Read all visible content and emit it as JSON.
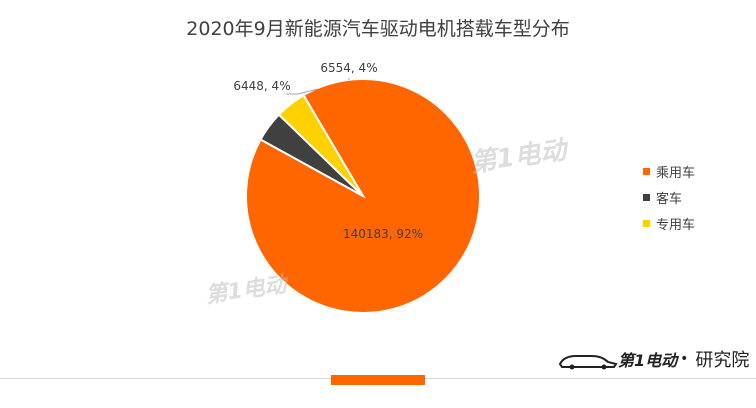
{
  "chart_data": {
    "type": "pie",
    "title": "2020年9月新能源汽车驱动电机搭载车型分布",
    "categories": [
      "乘用车",
      "客车",
      "专用车"
    ],
    "values": [
      140183,
      6448,
      6554
    ],
    "percent_labels": [
      "92%",
      "4%",
      "4%"
    ],
    "data_labels": [
      "140183, 92%",
      "6448, 4%",
      "6554, 4%"
    ],
    "legend_position": "right",
    "colors": [
      "#ff6600",
      "#404040",
      "#ffd100"
    ]
  },
  "brand": {
    "logo_text": "第1电动",
    "dot": "•",
    "label": "研究院"
  },
  "watermark": {
    "text": "第1电动"
  }
}
